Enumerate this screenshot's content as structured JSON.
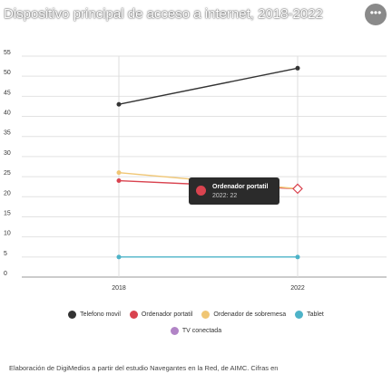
{
  "title": "Dispositivo principal de acceso a internet, 2018-2022",
  "menu_icon": "ellipsis-icon",
  "caption": "Elaboración de DigiMedios a partir del estudio Navegantes en la Red, de AIMC. Cifras en",
  "tooltip": {
    "series": "Ordenador portatil",
    "value_text": "2022: 22",
    "color": "#d9434f"
  },
  "chart_data": {
    "type": "line",
    "title": "Dispositivo principal de acceso a internet, 2018-2022",
    "x": [
      "2018",
      "2022"
    ],
    "ylim": [
      0,
      55
    ],
    "yticks": [
      0,
      5,
      10,
      15,
      20,
      25,
      30,
      35,
      40,
      45,
      50,
      55
    ],
    "grid": true,
    "legend_position": "bottom",
    "series": [
      {
        "name": "Telefono movil",
        "color": "#333333",
        "values": [
          43,
          52
        ]
      },
      {
        "name": "Ordenador portatil",
        "color": "#d9434f",
        "values": [
          24,
          22
        ]
      },
      {
        "name": "Ordenador de sobremesa",
        "color": "#f0c674",
        "values": [
          26,
          22
        ]
      },
      {
        "name": "Tablet",
        "color": "#4db3c8",
        "values": [
          5,
          5
        ]
      },
      {
        "name": "TV conectada",
        "color": "#b184c6",
        "values": [
          null,
          null
        ]
      }
    ],
    "highlight": {
      "series": "Ordenador portatil",
      "x": "2022"
    }
  }
}
